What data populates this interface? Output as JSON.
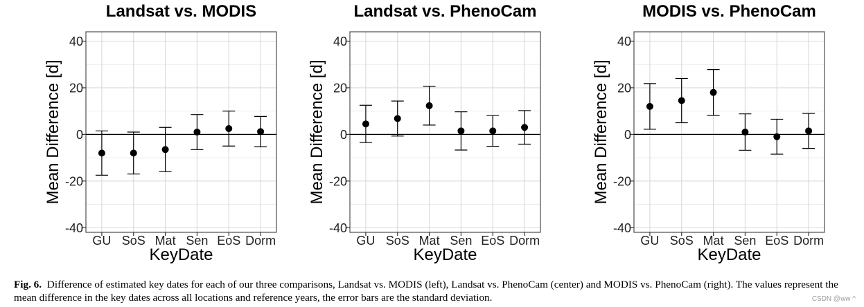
{
  "caption": {
    "label": "Fig. 6.",
    "text": "Difference of estimated key dates for each of our three comparisons, Landsat vs. MODIS (left), Landsat vs. PhenoCam (center) and MODIS vs. PhenoCam (right). The values represent the mean difference in the key dates across all locations and reference years, the error bars are the standard deviation."
  },
  "watermark": "CSDN @ww ^",
  "chart_data": [
    {
      "type": "scatter",
      "title": "Landsat vs. MODIS",
      "xlabel": "KeyDate",
      "ylabel": "Mean Difference [d]",
      "categories": [
        "GU",
        "SoS",
        "Mat",
        "Sen",
        "EoS",
        "Dorm"
      ],
      "ylim": [
        -42,
        44
      ],
      "yticks": [
        -40,
        -20,
        0,
        20,
        40
      ],
      "reference_line": 0,
      "grid": true,
      "legend": "none",
      "series": [
        {
          "values": [
            -8,
            -8,
            -6.5,
            1,
            2.5,
            1.2
          ],
          "error": [
            9.5,
            9,
            9.5,
            7.5,
            7.5,
            6.5
          ]
        }
      ]
    },
    {
      "type": "scatter",
      "title": "Landsat vs. PhenoCam",
      "xlabel": "KeyDate",
      "ylabel": "Mean Difference [d]",
      "categories": [
        "GU",
        "SoS",
        "Mat",
        "Sen",
        "EoS",
        "Dorm"
      ],
      "ylim": [
        -42,
        44
      ],
      "yticks": [
        -40,
        -20,
        0,
        20,
        40
      ],
      "reference_line": 0,
      "grid": true,
      "legend": "none",
      "series": [
        {
          "values": [
            4.5,
            6.8,
            12.3,
            1.5,
            1.5,
            3
          ],
          "error": [
            8,
            7.5,
            8.3,
            8.2,
            6.6,
            7.2
          ]
        }
      ]
    },
    {
      "type": "scatter",
      "title": "MODIS vs. PhenoCam",
      "xlabel": "KeyDate",
      "ylabel": "Mean Difference [d]",
      "categories": [
        "GU",
        "SoS",
        "Mat",
        "Sen",
        "EoS",
        "Dorm"
      ],
      "ylim": [
        -42,
        44
      ],
      "yticks": [
        -40,
        -20,
        0,
        20,
        40
      ],
      "reference_line": 0,
      "grid": true,
      "legend": "none",
      "series": [
        {
          "values": [
            12,
            14.5,
            18,
            1,
            -1,
            1.5
          ],
          "error": [
            9.8,
            9.5,
            9.8,
            7.8,
            7.5,
            7.5
          ]
        }
      ]
    }
  ]
}
